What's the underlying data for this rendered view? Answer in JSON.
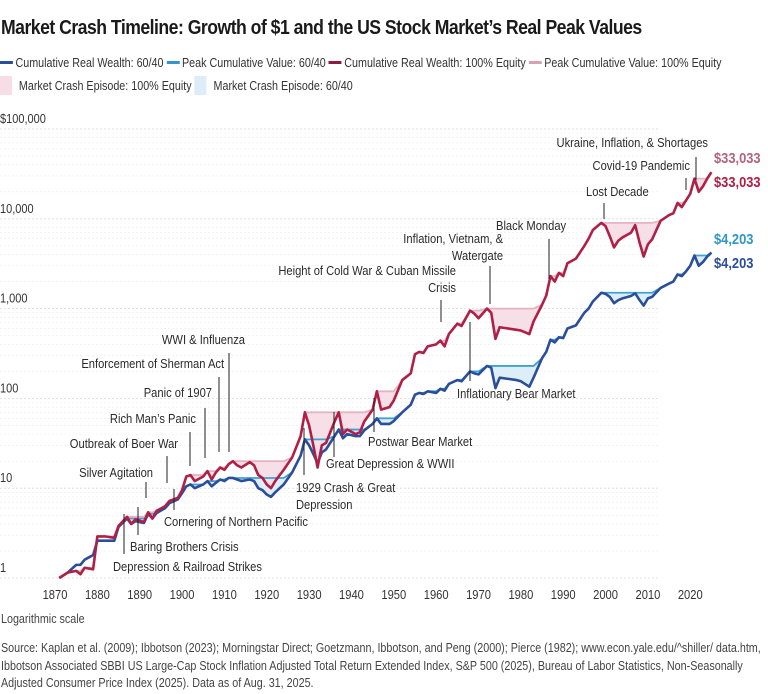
{
  "chart_data": {
    "type": "line",
    "title": "Market Crash Timeline: Growth of $1 and the US Stock Market’s Real Peak Values",
    "xlabel": "",
    "ylabel": "",
    "yscale": "log",
    "ylim": [
      1,
      100000
    ],
    "xlim": [
      1870,
      2025
    ],
    "grid": true,
    "legend_position": "top",
    "y_ticks": [
      "$100,000",
      "10,000",
      "1,000",
      "100",
      "10",
      "1"
    ],
    "y_tick_values": [
      100000,
      10000,
      1000,
      100,
      10,
      1
    ],
    "x_ticks": [
      "1870",
      "1880",
      "1890",
      "1900",
      "1910",
      "1920",
      "1930",
      "1940",
      "1950",
      "1960",
      "1970",
      "1980",
      "1990",
      "2000",
      "2010",
      "2020"
    ],
    "x_tick_values": [
      1870,
      1880,
      1890,
      1900,
      1910,
      1920,
      1930,
      1940,
      1950,
      1960,
      1970,
      1980,
      1990,
      2000,
      2010,
      2020
    ],
    "legend": [
      {
        "label": "Cumulative Real Wealth: 60/40",
        "kind": "line",
        "color": "#2a4e9b"
      },
      {
        "label": "Peak Cumulative Value: 60/40",
        "kind": "line",
        "color": "#2f97c9"
      },
      {
        "label": "Cumulative Real Wealth: 100% Equity",
        "kind": "line",
        "color": "#8e1b3a"
      },
      {
        "label": "Peak Cumulative Value: 100% Equity",
        "kind": "line",
        "color": "#d7a3b3"
      },
      {
        "label": "Market Crash Episode: 100% Equity",
        "kind": "box",
        "color": "#f6dde6"
      },
      {
        "label": "Market Crash Episode: 60/40",
        "kind": "box",
        "color": "#dcedf8"
      }
    ],
    "series": [
      {
        "name": "Cumulative Real Wealth: 100% Equity",
        "color": "#b01f45",
        "x": [
          1871,
          1873,
          1875,
          1876,
          1877,
          1879,
          1880,
          1882,
          1884,
          1885,
          1887,
          1888,
          1889,
          1891,
          1892,
          1893,
          1894,
          1896,
          1897,
          1899,
          1900,
          1901,
          1902,
          1903,
          1905,
          1906,
          1907,
          1908,
          1909,
          1910,
          1911,
          1912,
          1913,
          1914,
          1916,
          1917,
          1918,
          1919,
          1920,
          1921,
          1922,
          1924,
          1926,
          1928,
          1929,
          1930,
          1931,
          1932,
          1933,
          1934,
          1936,
          1937,
          1938,
          1939,
          1941,
          1942,
          1943,
          1945,
          1946,
          1947,
          1949,
          1950,
          1952,
          1954,
          1955,
          1956,
          1957,
          1958,
          1960,
          1961,
          1962,
          1963,
          1965,
          1966,
          1968,
          1969,
          1970,
          1972,
          1973,
          1974,
          1975,
          1977,
          1979,
          1980,
          1982,
          1983,
          1985,
          1986,
          1987,
          1988,
          1989,
          1990,
          1991,
          1993,
          1995,
          1996,
          1997,
          1999,
          2000,
          2001,
          2002,
          2003,
          2004,
          2006,
          2007,
          2008,
          2009,
          2010,
          2011,
          2013,
          2015,
          2016,
          2017,
          2018,
          2019,
          2020,
          2021,
          2022,
          2023,
          2024,
          2025
        ],
        "values": [
          1,
          1.15,
          1.2,
          1.1,
          1.3,
          1.25,
          2.9,
          2.9,
          2.8,
          3.8,
          4.8,
          4.0,
          4.5,
          4.2,
          5.4,
          4.6,
          5.6,
          6.3,
          7.2,
          7.8,
          9.5,
          13.5,
          14,
          12,
          13.5,
          15.5,
          12.5,
          15,
          17,
          16,
          18.5,
          20,
          18,
          17,
          19.5,
          18,
          14,
          13,
          11,
          10,
          12,
          16,
          22,
          38,
          70,
          50,
          30,
          17,
          30,
          32,
          55,
          70,
          40,
          45,
          40,
          42,
          55,
          75,
          120,
          75,
          80,
          95,
          160,
          190,
          310,
          330,
          320,
          380,
          400,
          440,
          380,
          520,
          680,
          640,
          950,
          880,
          780,
          1000,
          900,
          460,
          620,
          600,
          580,
          570,
          520,
          720,
          1100,
          1400,
          2300,
          2000,
          2500,
          2300,
          3200,
          3600,
          5000,
          6000,
          7500,
          9000,
          8300,
          6400,
          4800,
          5700,
          6200,
          7000,
          8500,
          5500,
          3800,
          5200,
          5900,
          9500,
          11000,
          11500,
          15000,
          13500,
          16000,
          19000,
          28000,
          20000,
          23000,
          28000,
          33033
        ]
      },
      {
        "name": "Cumulative Real Wealth: 60/40",
        "color": "#2a4e9b",
        "x": [
          1871,
          1873,
          1875,
          1876,
          1877,
          1879,
          1880,
          1882,
          1884,
          1885,
          1887,
          1888,
          1889,
          1891,
          1892,
          1893,
          1894,
          1896,
          1897,
          1899,
          1900,
          1901,
          1902,
          1903,
          1905,
          1906,
          1907,
          1908,
          1909,
          1910,
          1911,
          1912,
          1913,
          1914,
          1916,
          1917,
          1918,
          1919,
          1920,
          1921,
          1922,
          1924,
          1926,
          1928,
          1929,
          1930,
          1931,
          1932,
          1933,
          1934,
          1936,
          1937,
          1938,
          1939,
          1941,
          1942,
          1943,
          1945,
          1946,
          1947,
          1949,
          1950,
          1952,
          1954,
          1955,
          1956,
          1957,
          1958,
          1960,
          1961,
          1962,
          1963,
          1965,
          1966,
          1968,
          1969,
          1970,
          1972,
          1973,
          1974,
          1975,
          1977,
          1979,
          1980,
          1982,
          1983,
          1985,
          1986,
          1987,
          1988,
          1989,
          1990,
          1991,
          1993,
          1995,
          1996,
          1997,
          1999,
          2000,
          2001,
          2002,
          2003,
          2004,
          2006,
          2007,
          2008,
          2009,
          2010,
          2011,
          2013,
          2015,
          2016,
          2017,
          2018,
          2019,
          2020,
          2021,
          2022,
          2023,
          2024,
          2025
        ],
        "values": [
          1,
          1.15,
          1.4,
          1.4,
          1.6,
          1.8,
          2.6,
          2.6,
          2.6,
          3.7,
          4.6,
          4.0,
          4.3,
          4.1,
          5.2,
          4.6,
          5.3,
          6.0,
          6.8,
          7.5,
          8.8,
          10.5,
          11,
          10,
          11,
          12,
          10.5,
          11.5,
          12.5,
          12,
          13,
          13,
          12.5,
          12,
          12.5,
          12,
          10,
          9.5,
          8.5,
          8.0,
          9,
          11,
          15,
          23,
          35,
          30,
          24,
          19,
          25,
          27,
          38,
          45,
          36,
          40,
          38,
          38,
          44,
          52,
          60,
          52,
          52,
          56,
          70,
          85,
          110,
          115,
          112,
          120,
          115,
          128,
          122,
          145,
          160,
          155,
          200,
          190,
          185,
          230,
          220,
          130,
          170,
          165,
          160,
          155,
          135,
          170,
          280,
          330,
          450,
          420,
          480,
          470,
          600,
          650,
          900,
          1000,
          1200,
          1500,
          1460,
          1350,
          1150,
          1240,
          1300,
          1380,
          1480,
          1250,
          1080,
          1300,
          1350,
          1700,
          1900,
          2000,
          2400,
          2300,
          2600,
          3000,
          3900,
          3000,
          3300,
          3800,
          4203
        ]
      }
    ],
    "end_labels": [
      {
        "series": "Peak Cumulative Value: 100% Equity",
        "text": "$33,033",
        "color": "#b5637f"
      },
      {
        "series": "Cumulative Real Wealth: 100% Equity",
        "text": "$33,033",
        "color": "#b01f45"
      },
      {
        "series": "Peak Cumulative Value: 60/40",
        "text": "$4,203",
        "color": "#2f97c9"
      },
      {
        "series": "Cumulative Real Wealth: 60/40",
        "text": "$4,203",
        "color": "#2a4e9b"
      }
    ],
    "annotations": [
      {
        "text": "Depression & Railroad Strikes",
        "year": 1887,
        "side": "below"
      },
      {
        "text": "Baring Brothers Crisis",
        "year": 1890,
        "side": "below"
      },
      {
        "text": "Silver Agitation",
        "year": 1893,
        "side": "above"
      },
      {
        "text": "Outbreak of Boer War",
        "year": 1899,
        "side": "above"
      },
      {
        "text": "Cornering of Northern Pacific",
        "year": 1901,
        "side": "below"
      },
      {
        "text": "Rich Man's Panic",
        "year": 1902,
        "side": "above"
      },
      {
        "text": "Panic of 1907",
        "year": 1906,
        "side": "above"
      },
      {
        "text": "Enforcement of Sherman Act",
        "year": 1909,
        "side": "above"
      },
      {
        "text": "WWI & Influenza",
        "year": 1912,
        "side": "above"
      },
      {
        "text": "1929 Crash & Great Depression",
        "year": 1929,
        "side": "below"
      },
      {
        "text": "Great Depression & WWII",
        "year": 1937,
        "side": "below"
      },
      {
        "text": "Postwar Bear Market",
        "year": 1946,
        "side": "below"
      },
      {
        "text": "Height of Cold War & Cuban Missile Crisis",
        "year": 1962,
        "side": "above"
      },
      {
        "text": "Inflationary Bear Market",
        "year": 1969,
        "side": "below"
      },
      {
        "text": "Inflation, Vietnam, & Watergate",
        "year": 1973,
        "side": "above"
      },
      {
        "text": "Black Monday",
        "year": 1987,
        "side": "above"
      },
      {
        "text": "Lost Decade",
        "year": 2000,
        "side": "above"
      },
      {
        "text": "Covid-19 Pandemic",
        "year": 2020,
        "side": "above"
      },
      {
        "text": "Ukraine, Inflation, & Shortages",
        "year": 2022,
        "side": "above"
      }
    ]
  },
  "legend_items": [
    "Cumulative Real Wealth: 60/40",
    "Peak Cumulative Value: 60/40",
    "Cumulative Real Wealth: 100% Equity",
    "Peak Cumulative Value: 100% Equity",
    "Market Crash Episode: 100% Equity",
    "Market Crash Episode: 60/40"
  ],
  "note": "Logarithmic scale",
  "source": "Source: Kaplan et al. (2009); Ibbotson (2023); Morningstar Direct; Goetzmann, Ibbotson, and Peng (2000); Pierce (1982); www.econ.yale.edu/^shiller/ data.htm, Ibbotson Associated SBBI US Large-Cap Stock Inflation Adjusted Total Return Extended Index, S&P 500 (2025), Bureau of Labor Statistics, Non-Seasonally Adjusted Consumer Price Index (2025). Data as of Aug. 31, 2025."
}
